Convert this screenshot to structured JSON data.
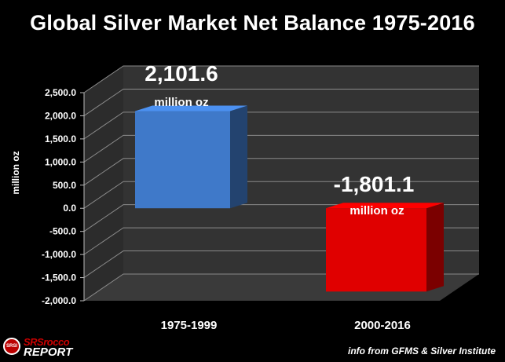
{
  "title": "Global Silver Market Net Balance 1975-2016",
  "source_note": "info from GFMS & Silver Institute",
  "logo": {
    "badge": "SRSI",
    "line1": "SRSrocco",
    "line2": "REPORT"
  },
  "colors": {
    "bar_positive": "#3f79c9",
    "bar_negative": "#e00000",
    "background": "#000000",
    "wall": "#333333"
  },
  "chart_data": {
    "type": "bar",
    "title": "Global Silver Market Net Balance 1975-2016",
    "ylabel": "million oz",
    "xlabel": "",
    "categories": [
      "1975-1999",
      "2000-2016"
    ],
    "values": [
      2101.6,
      -1801.1
    ],
    "data_labels": [
      "2,101.6",
      "-1,801.1"
    ],
    "data_label_units": [
      "million oz",
      "million oz"
    ],
    "ylim": [
      -2000,
      2500
    ],
    "yticks": [
      2500,
      2000,
      1500,
      1000,
      500,
      0,
      -500,
      -1000,
      -1500,
      -2000
    ],
    "ytick_labels": [
      "2,500.0",
      "2,000.0",
      "1,500.0",
      "1,000.0",
      "500.0",
      "0.0",
      "-500.0",
      "-1,000.0",
      "-1,500.0",
      "-2,000.0"
    ],
    "grid": true,
    "legend": "none",
    "style": "3d"
  }
}
